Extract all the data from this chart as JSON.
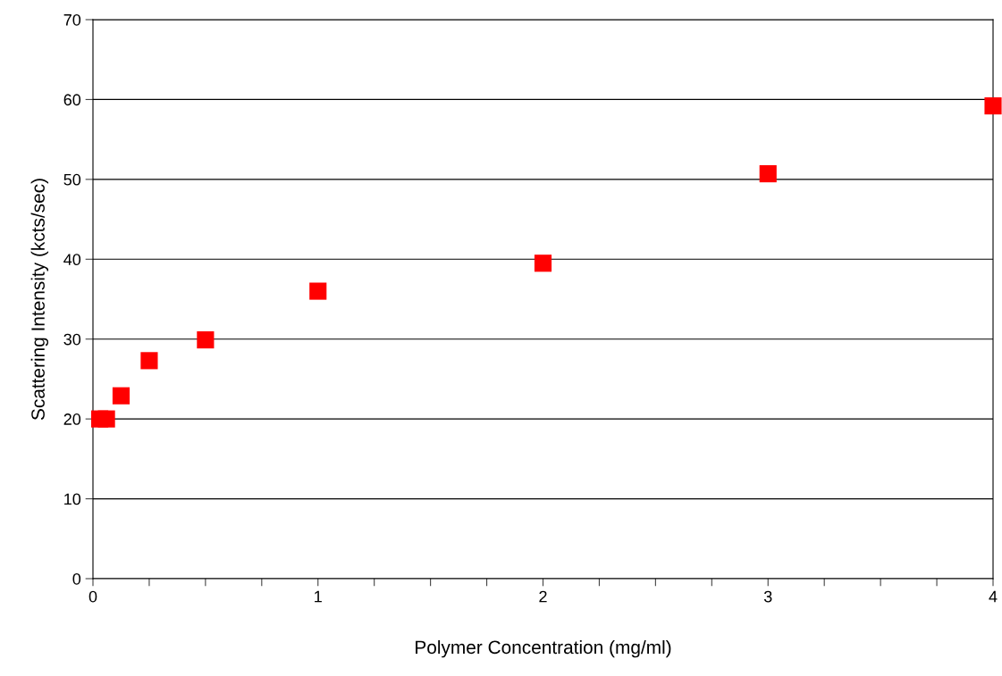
{
  "chart_data": {
    "type": "scatter",
    "xlabel": "Polymer Concentration (mg/ml)",
    "ylabel": "Scattering Intensity (kcts/sec)",
    "x": [
      0.03,
      0.06,
      0.125,
      0.25,
      0.5,
      1,
      2,
      3,
      4
    ],
    "series": [
      {
        "color": "#ff0000",
        "values": [
          20.0,
          20.0,
          22.9,
          27.3,
          29.9,
          36.0,
          39.5,
          50.7,
          59.2
        ]
      }
    ],
    "xlim": [
      0,
      4
    ],
    "ylim": [
      0,
      70
    ],
    "xticks": [
      0,
      {
        "value": 0.25,
        "label": null
      },
      {
        "value": 0.5,
        "label": null
      },
      {
        "value": 0.75,
        "label": null
      },
      1,
      {
        "value": 1.25,
        "label": null
      },
      {
        "value": 1.5,
        "label": null
      },
      {
        "value": 1.75,
        "label": null
      },
      2,
      {
        "value": 2.25,
        "label": null
      },
      {
        "value": 2.5,
        "label": null
      },
      {
        "value": 2.75,
        "label": null
      },
      3,
      {
        "value": 3.25,
        "label": null
      },
      {
        "value": 3.5,
        "label": null
      },
      {
        "value": 3.75,
        "label": null
      },
      4
    ],
    "yticks": [
      0,
      10,
      20,
      30,
      40,
      50,
      60,
      70
    ],
    "grid": "y",
    "marker": "square",
    "legend": false
  }
}
